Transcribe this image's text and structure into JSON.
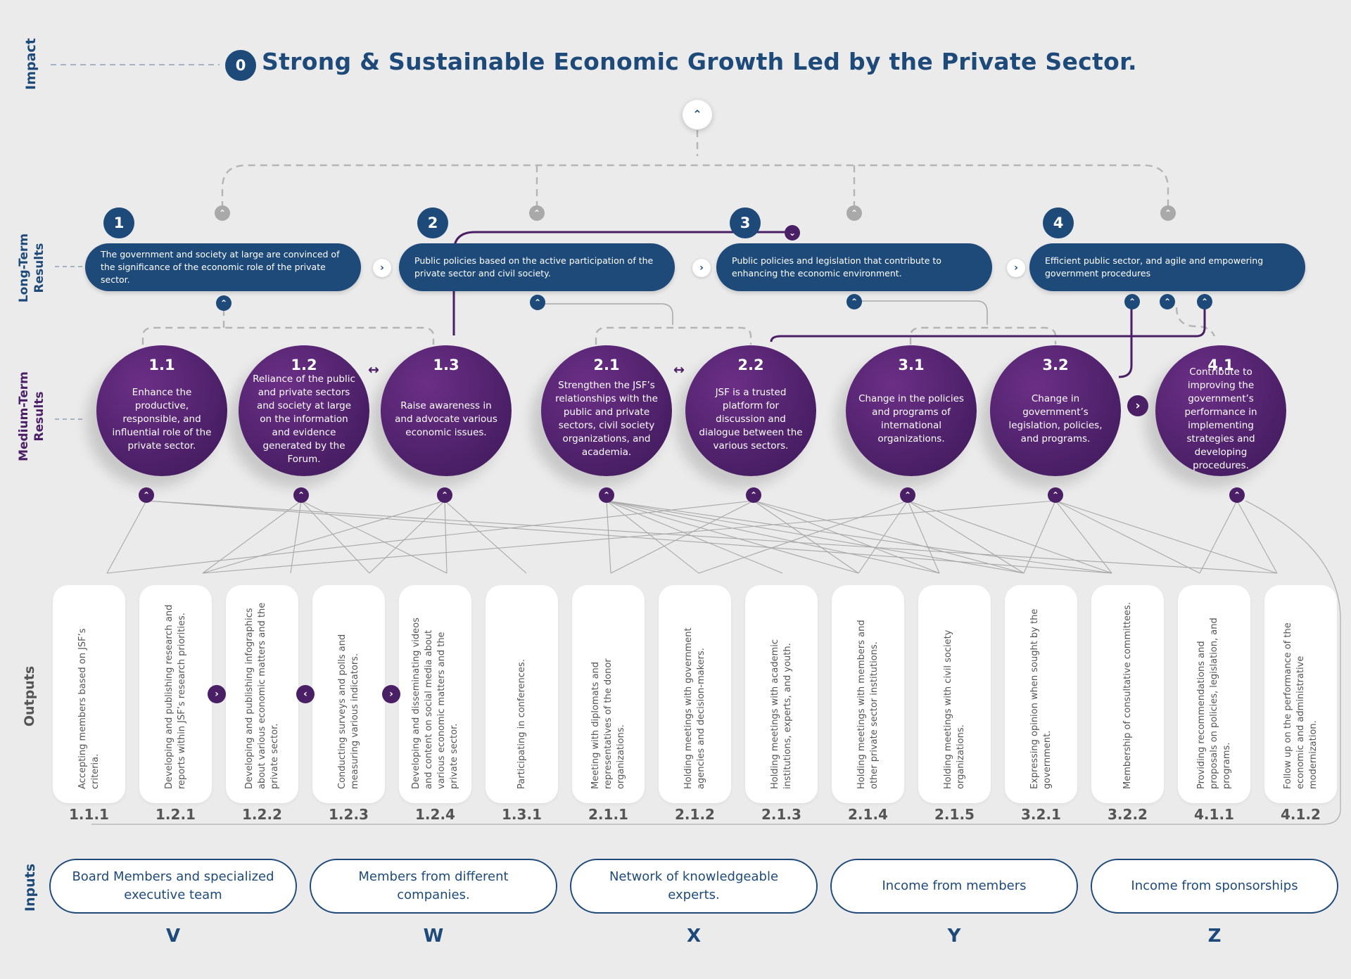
{
  "row_labels": {
    "impact": "Impact",
    "long_term": "Long-Term\nResults",
    "medium_term": "Medium-Term\nResults",
    "outputs": "Outputs",
    "inputs": "Inputs"
  },
  "impact": {
    "number": "0",
    "text": "Strong & Sustainable Economic Growth Led by the Private Sector."
  },
  "long_term": [
    {
      "number": "1",
      "text": "The government and society at large are convinced of the significance of the economic role of the private sector."
    },
    {
      "number": "2",
      "text": "Public policies based on the active participation of the private sector and civil society."
    },
    {
      "number": "3",
      "text": "Public policies and legislation that contribute to enhancing the economic environment."
    },
    {
      "number": "4",
      "text": "Efficient public sector, and agile and empowering government procedures"
    }
  ],
  "medium_term": [
    {
      "number": "1.1",
      "text": "Enhance the productive, responsible, and influential role of the private sector."
    },
    {
      "number": "1.2",
      "text": "Reliance of the public and private sectors and society at large on the information and evidence generated by the Forum."
    },
    {
      "number": "1.3",
      "text": "Raise awareness in and advocate various economic issues."
    },
    {
      "number": "2.1",
      "text": "Strengthen the JSF’s relationships with the public and private sectors, civil society organizations, and academia."
    },
    {
      "number": "2.2",
      "text": "JSF is a trusted platform for discussion and dialogue between the various sectors."
    },
    {
      "number": "3.1",
      "text": "Change in the policies and programs of international organizations."
    },
    {
      "number": "3.2",
      "text": "Change in government’s legislation, policies, and programs."
    },
    {
      "number": "4.1",
      "text": "Contribute to improving the government’s performance in implementing strategies and developing procedures."
    }
  ],
  "outputs": [
    {
      "number": "1.1.1",
      "text": "Accepting members based on JSF’s criteria."
    },
    {
      "number": "1.2.1",
      "text": "Developing and publishing research and reports within JSF’s research priorities."
    },
    {
      "number": "1.2.2",
      "text": "Developing and publishing infographics about various economic matters and the private sector."
    },
    {
      "number": "1.2.3",
      "text": "Conducting surveys and polls and measuring various indicators."
    },
    {
      "number": "1.2.4",
      "text": "Developing and disseminating videos and content on social media about various economic matters and the private sector."
    },
    {
      "number": "1.3.1",
      "text": "Participating in conferences."
    },
    {
      "number": "2.1.1",
      "text": "Meeting with diplomats and representatives of the donor organizations."
    },
    {
      "number": "2.1.2",
      "text": "Holding meetings with government agencies and decision-makers."
    },
    {
      "number": "2.1.3",
      "text": "Holding meetings with academic institutions, experts, and youth."
    },
    {
      "number": "2.1.4",
      "text": "Holding meetings with members and other private sector institutions."
    },
    {
      "number": "2.1.5",
      "text": "Holding meetings with civil society organizations."
    },
    {
      "number": "3.2.1",
      "text": "Expressing opinion when sought by the government."
    },
    {
      "number": "3.2.2",
      "text": "Membership of consultative committees."
    },
    {
      "number": "4.1.1",
      "text": "Providing recommendations and proposals on policies, legislation, and programs."
    },
    {
      "number": "4.1.2",
      "text": "Follow up on the performance of the economic and administrative modernization."
    }
  ],
  "inputs": [
    {
      "text": "Board Members and specialized executive team",
      "letter": "V"
    },
    {
      "text": "Members from different companies.",
      "letter": "W"
    },
    {
      "text": "Network of knowledgeable experts.",
      "letter": "X"
    },
    {
      "text": "Income from members",
      "letter": "Y"
    },
    {
      "text": "Income from sponsorships",
      "letter": "Z"
    }
  ],
  "colors": {
    "blue": "#1e4a7a",
    "purple": "#4a1f66",
    "gray_line": "#aaaaaa",
    "dashed": "#b5b5b5",
    "background": "#ebebeb"
  },
  "icons": {
    "up": "chevron-up-icon",
    "down": "chevron-down-icon",
    "right": "chevron-right-icon",
    "left": "chevron-left-icon",
    "both": "double-arrow-icon"
  }
}
